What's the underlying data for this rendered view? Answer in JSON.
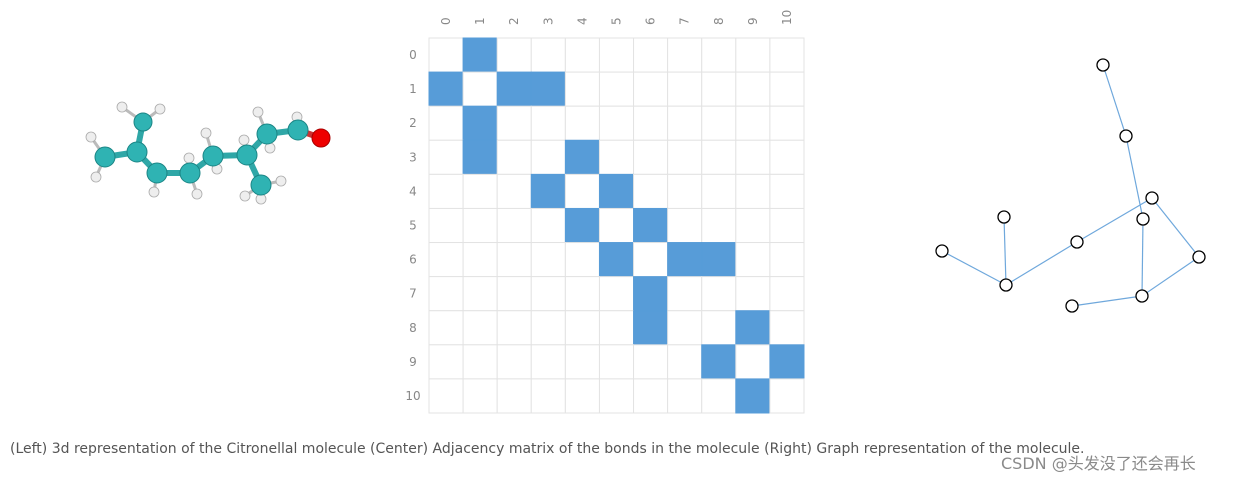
{
  "matrix": {
    "labels": [
      "0",
      "1",
      "2",
      "3",
      "4",
      "5",
      "6",
      "7",
      "8",
      "9",
      "10"
    ],
    "rows": [
      [
        0,
        1,
        0,
        0,
        0,
        0,
        0,
        0,
        0,
        0,
        0
      ],
      [
        1,
        0,
        1,
        1,
        0,
        0,
        0,
        0,
        0,
        0,
        0
      ],
      [
        0,
        1,
        0,
        0,
        0,
        0,
        0,
        0,
        0,
        0,
        0
      ],
      [
        0,
        1,
        0,
        0,
        1,
        0,
        0,
        0,
        0,
        0,
        0
      ],
      [
        0,
        0,
        0,
        1,
        0,
        1,
        0,
        0,
        0,
        0,
        0
      ],
      [
        0,
        0,
        0,
        0,
        1,
        0,
        1,
        0,
        0,
        0,
        0
      ],
      [
        0,
        0,
        0,
        0,
        0,
        1,
        0,
        1,
        1,
        0,
        0
      ],
      [
        0,
        0,
        0,
        0,
        0,
        0,
        1,
        0,
        0,
        0,
        0
      ],
      [
        0,
        0,
        0,
        0,
        0,
        0,
        1,
        0,
        0,
        1,
        0
      ],
      [
        0,
        0,
        0,
        0,
        0,
        0,
        0,
        0,
        1,
        0,
        1
      ],
      [
        0,
        0,
        0,
        0,
        0,
        0,
        0,
        0,
        0,
        1,
        0
      ]
    ],
    "filled_color": "#579cd8"
  },
  "caption": "(Left) 3d representation of the Citronellal molecule (Center) Adjacency matrix of the bonds in the molecule (Right) Graph representation of the molecule.",
  "watermark": "CSDN @头发没了还会再长"
}
